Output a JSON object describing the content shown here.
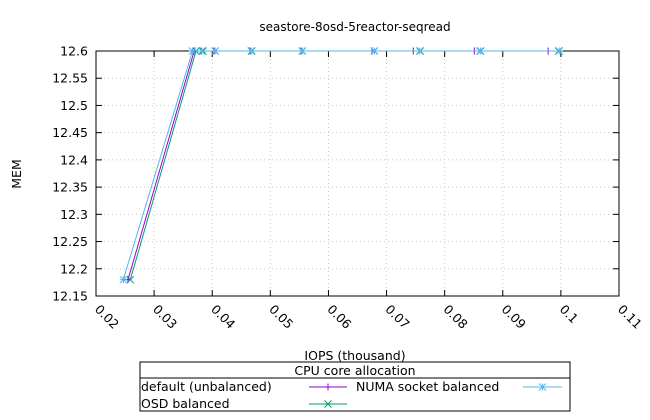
{
  "chart_data": {
    "type": "line",
    "title": "seastore-8osd-5reactor-seqread",
    "xlabel": "IOPS (thousand)",
    "ylabel": "MEM",
    "xlim": [
      0.02,
      0.11
    ],
    "ylim": [
      12.15,
      12.6
    ],
    "xticks": [
      "0.02",
      "0.03",
      "0.04",
      "0.05",
      "0.06",
      "0.07",
      "0.08",
      "0.09",
      "0.1",
      "0.11"
    ],
    "yticks": [
      "12.15",
      "12.2",
      "12.25",
      "12.3",
      "12.35",
      "12.4",
      "12.45",
      "12.5",
      "12.55",
      "12.6"
    ],
    "grid": true,
    "legend_title": "CPU core allocation",
    "legend_position": "below",
    "series": [
      {
        "name": "default (unbalanced)",
        "color": "#9400d3",
        "marker": "+",
        "x": [
          0.0255,
          0.0369,
          0.0381,
          0.0403,
          0.0465,
          0.0553,
          0.0675,
          0.0746,
          0.0851,
          0.0978
        ],
        "y": [
          12.18,
          12.6,
          12.6,
          12.6,
          12.6,
          12.6,
          12.6,
          12.6,
          12.6,
          12.6
        ]
      },
      {
        "name": "OSD balanced",
        "color": "#009e73",
        "marker": "x",
        "x": [
          0.0259,
          0.0372,
          0.0384,
          0.0405,
          0.0468,
          0.0555,
          0.0679,
          0.0758,
          0.0861,
          0.0996
        ],
        "y": [
          12.18,
          12.6,
          12.6,
          12.6,
          12.6,
          12.6,
          12.6,
          12.6,
          12.6,
          12.6
        ]
      },
      {
        "name": "NUMA socket balanced",
        "color": "#56b4e9",
        "marker": "*",
        "x": [
          0.0247,
          0.0366,
          0.0382,
          0.0405,
          0.0467,
          0.0555,
          0.0679,
          0.0757,
          0.0862,
          0.0997
        ],
        "y": [
          12.18,
          12.6,
          12.6,
          12.6,
          12.6,
          12.6,
          12.6,
          12.6,
          12.6,
          12.6
        ]
      }
    ]
  }
}
